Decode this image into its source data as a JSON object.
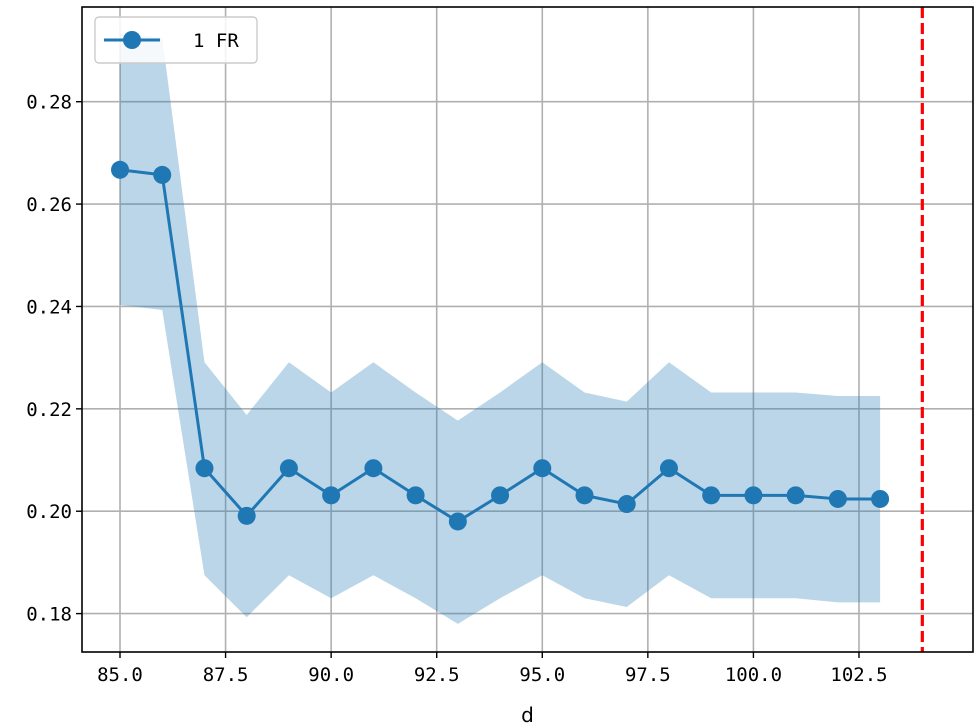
{
  "chart_data": {
    "type": "line",
    "title": "",
    "xlabel": "d",
    "ylabel": "",
    "xlim": [
      84.1,
      105.2
    ],
    "ylim": [
      0.1725,
      0.2985
    ],
    "grid": true,
    "legend_position": "top-left",
    "x_ticks": [
      85.0,
      87.5,
      90.0,
      92.5,
      95.0,
      97.5,
      100.0,
      102.5
    ],
    "x_tick_labels": [
      "85.0",
      "87.5",
      "90.0",
      "92.5",
      "95.0",
      "97.5",
      "100.0",
      "102.5"
    ],
    "y_ticks": [
      0.18,
      0.2,
      0.22,
      0.24,
      0.26,
      0.28
    ],
    "y_tick_labels": [
      "0.18",
      "0.20",
      "0.22",
      "0.24",
      "0.26",
      "0.28"
    ],
    "series": [
      {
        "name": "1 FR",
        "color": "#1f77b4",
        "band_color": "#1f77b4",
        "x": [
          85,
          86,
          87,
          88,
          89,
          90,
          91,
          92,
          93,
          94,
          95,
          96,
          97,
          98,
          99,
          100,
          101,
          102,
          103
        ],
        "values": [
          0.2667,
          0.2657,
          0.2084,
          0.1991,
          0.2084,
          0.2031,
          0.2084,
          0.2031,
          0.198,
          0.2031,
          0.2084,
          0.2031,
          0.2014,
          0.2084,
          0.2031,
          0.2031,
          0.2031,
          0.2024,
          0.2024
        ],
        "lower": [
          0.2403,
          0.2393,
          0.1875,
          0.1793,
          0.1875,
          0.183,
          0.1875,
          0.183,
          0.178,
          0.183,
          0.1875,
          0.183,
          0.1813,
          0.1875,
          0.183,
          0.183,
          0.183,
          0.1822,
          0.1822
        ],
        "upper": [
          0.2933,
          0.2925,
          0.2291,
          0.2188,
          0.2291,
          0.2232,
          0.2291,
          0.2232,
          0.2177,
          0.2232,
          0.2291,
          0.2232,
          0.2214,
          0.2291,
          0.2232,
          0.2232,
          0.2232,
          0.2225,
          0.2225
        ]
      }
    ],
    "reference_line": {
      "x": 104,
      "color": "#ff0000",
      "style": "dashed"
    }
  }
}
